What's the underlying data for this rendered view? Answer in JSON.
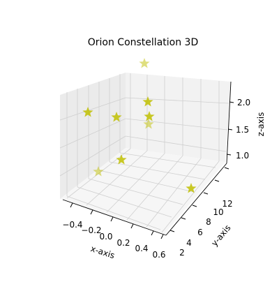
{
  "chart_data": {
    "type": "scatter",
    "projection": "3d",
    "title": "Orion Constellation 3D",
    "xlabel": "x-axis",
    "ylabel": "y-axis",
    "zlabel": "z-axis",
    "x_ticks": [
      "−0.4",
      "−0.2",
      "0.0",
      "0.2",
      "0.4",
      "0.6"
    ],
    "y_ticks": [
      "2",
      "4",
      "6",
      "8",
      "10",
      "12"
    ],
    "z_ticks": [
      "1.0",
      "1.5",
      "2.0"
    ],
    "grid": true,
    "marker": "star",
    "marker_color": "#bfbf00",
    "points_note": "stars rendered in 3D projection",
    "points": [
      {
        "x": -0.41,
        "y": 4.2,
        "z": 2.15
      },
      {
        "x": -0.35,
        "y": 12.8,
        "z": 2.45
      },
      {
        "x": -0.26,
        "y": 6.0,
        "z": 0.75
      },
      {
        "x": -0.05,
        "y": 9.5,
        "z": 2.1
      },
      {
        "x": -0.14,
        "y": 5.8,
        "z": 1.0
      },
      {
        "x": 0.02,
        "y": 11.5,
        "z": 1.95
      },
      {
        "x": 0.08,
        "y": 10.5,
        "z": 1.8
      },
      {
        "x": 0.11,
        "y": 11.0,
        "z": 2.4
      },
      {
        "x": 0.6,
        "y": 4.0,
        "z": 1.3
      }
    ]
  },
  "colors": {
    "star": "#bfbf00",
    "pane_left": "#ebebeb",
    "pane_back": "#f2f2f2",
    "pane_floor": "#f5f5f5",
    "grid": "#d0d0d0",
    "axis": "#000000"
  }
}
